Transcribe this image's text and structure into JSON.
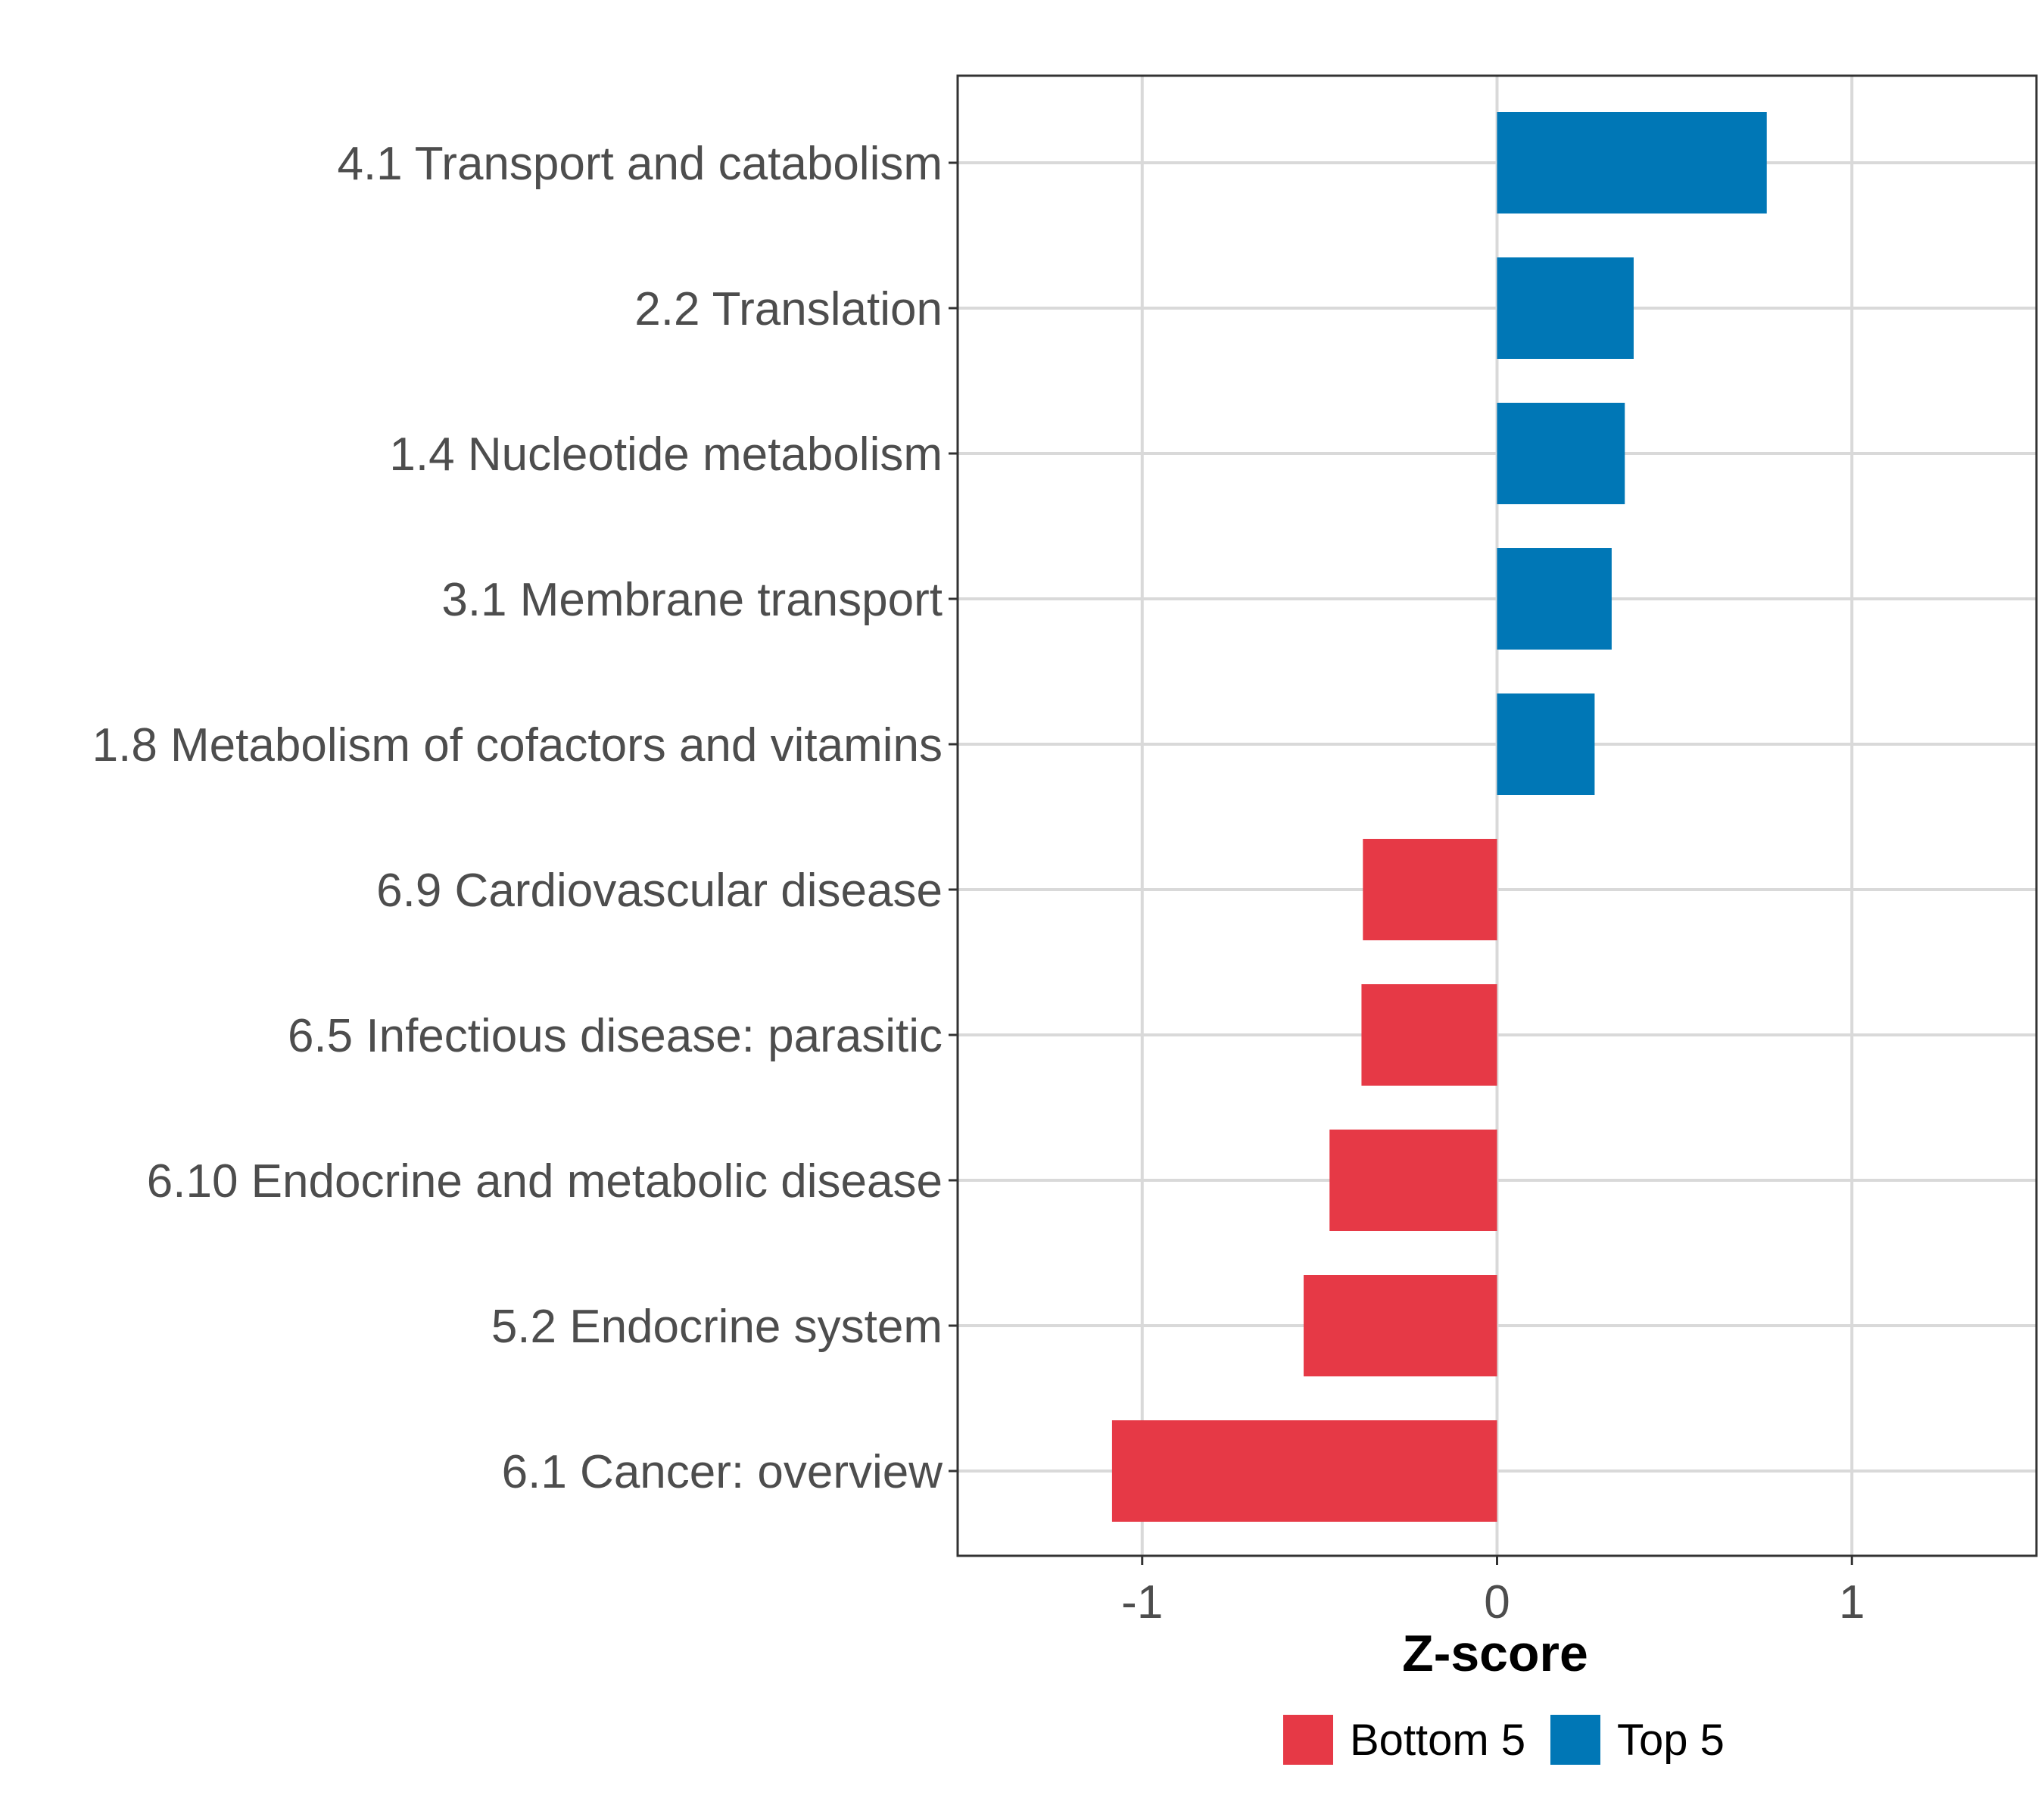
{
  "chart_data": {
    "type": "bar",
    "orientation": "horizontal",
    "title": "",
    "xlabel": "Z-score",
    "ylabel": "",
    "xlim": [
      -1.52,
      1.52
    ],
    "xticks": [
      -1,
      0,
      1
    ],
    "xtick_labels": [
      "-1",
      "0",
      "1"
    ],
    "grid": true,
    "legend_position": "bottom",
    "categories": [
      "4.1 Transport and catabolism",
      "2.2 Translation",
      "1.4 Nucleotide metabolism",
      "3.1 Membrane transport",
      "1.8 Metabolism of cofactors and vitamins",
      "6.9 Cardiovascular disease",
      "6.5 Infectious disease: parasitic",
      "6.10 Endocrine and metabolic disease",
      "5.2 Endocrine system",
      "6.1 Cancer: overview"
    ],
    "values": [
      0.76,
      0.385,
      0.36,
      0.323,
      0.275,
      -0.378,
      -0.382,
      -0.472,
      -0.545,
      -1.085
    ],
    "groups": [
      "Top 5",
      "Top 5",
      "Top 5",
      "Top 5",
      "Top 5",
      "Bottom 5",
      "Bottom 5",
      "Bottom 5",
      "Bottom 5",
      "Bottom 5"
    ],
    "legend": [
      {
        "name": "Bottom 5",
        "color": "#e63946"
      },
      {
        "name": "Top 5",
        "color": "#0077b6"
      }
    ]
  }
}
